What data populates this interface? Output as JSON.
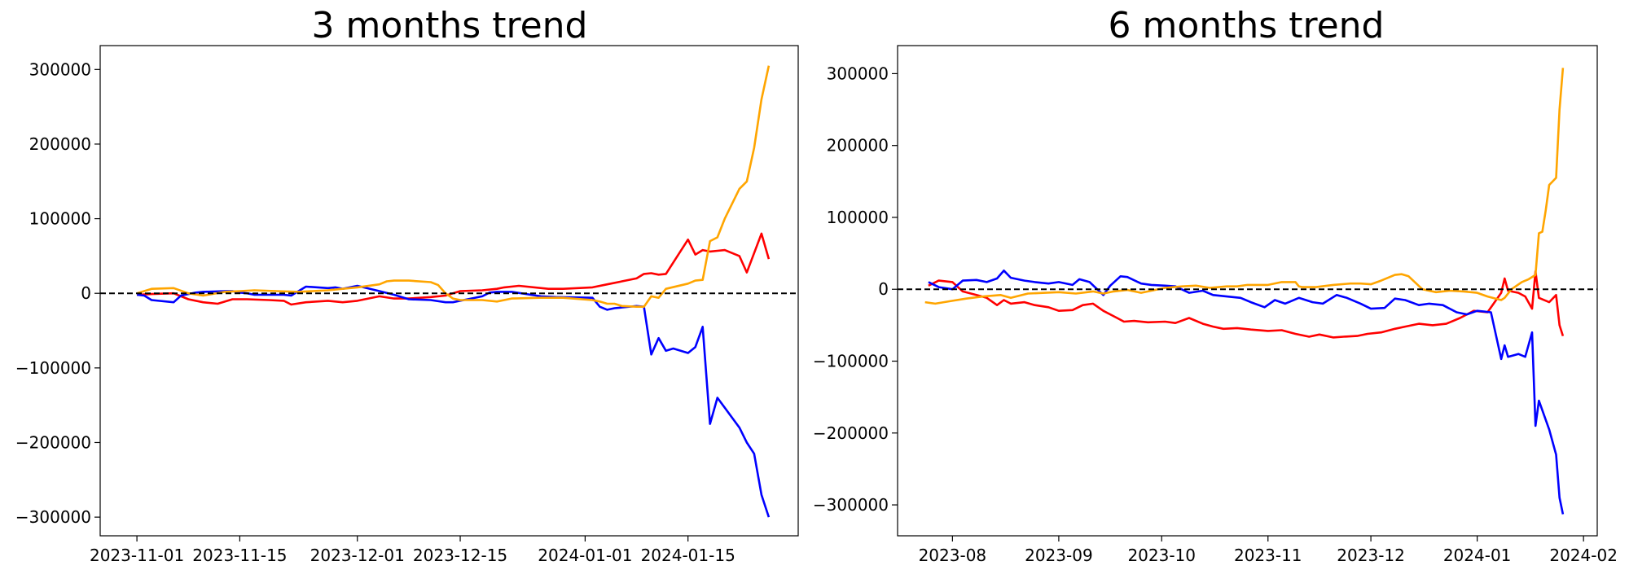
{
  "chart_data": [
    {
      "type": "line",
      "title": "3 months trend",
      "xlabel": "",
      "ylabel": "",
      "x_type": "date",
      "xlim": [
        "2023-10-27",
        "2024-01-30"
      ],
      "ylim": [
        -325000,
        332000
      ],
      "xticks": [
        "2023-11-01",
        "2023-11-15",
        "2023-12-01",
        "2023-12-15",
        "2024-01-01",
        "2024-01-15"
      ],
      "yticks": [
        -300000,
        -200000,
        -100000,
        0,
        100000,
        200000,
        300000
      ],
      "ytick_labels": [
        "−300000",
        "−200000",
        "−100000",
        "0",
        "100000",
        "200000",
        "300000"
      ],
      "grid": false,
      "reference_line": {
        "y": 0,
        "style": "dashed",
        "color": "#000000"
      },
      "series": [
        {
          "color": "#ff0000",
          "x": [
            "2023-11-01",
            "2023-11-03",
            "2023-11-06",
            "2023-11-08",
            "2023-11-10",
            "2023-11-12",
            "2023-11-14",
            "2023-11-16",
            "2023-11-19",
            "2023-11-21",
            "2023-11-22",
            "2023-11-24",
            "2023-11-27",
            "2023-11-29",
            "2023-12-01",
            "2023-12-04",
            "2023-12-06",
            "2023-12-08",
            "2023-12-11",
            "2023-12-13",
            "2023-12-15",
            "2023-12-18",
            "2023-12-20",
            "2023-12-21",
            "2023-12-23",
            "2023-12-27",
            "2023-12-29",
            "2024-01-02",
            "2024-01-04",
            "2024-01-08",
            "2024-01-09",
            "2024-01-10",
            "2024-01-11",
            "2024-01-12",
            "2024-01-15",
            "2024-01-16",
            "2024-01-17",
            "2024-01-18",
            "2024-01-19",
            "2024-01-20",
            "2024-01-22",
            "2024-01-23",
            "2024-01-25",
            "2024-01-26"
          ],
          "values": [
            -2000,
            -1000,
            0,
            -8000,
            -12000,
            -14000,
            -8000,
            -8000,
            -9000,
            -10000,
            -15000,
            -12000,
            -10000,
            -12000,
            -10000,
            -4000,
            -7000,
            -7000,
            -5000,
            -3000,
            3000,
            4000,
            6000,
            8000,
            10000,
            6000,
            6000,
            8000,
            12000,
            20000,
            26000,
            27000,
            25000,
            26000,
            72000,
            52000,
            58000,
            56000,
            57000,
            58000,
            50000,
            28000,
            80000,
            46000
          ]
        },
        {
          "color": "#0000ff",
          "x": [
            "2023-11-01",
            "2023-11-02",
            "2023-11-03",
            "2023-11-06",
            "2023-11-07",
            "2023-11-08",
            "2023-11-09",
            "2023-11-10",
            "2023-11-13",
            "2023-11-14",
            "2023-11-15",
            "2023-11-16",
            "2023-11-17",
            "2023-11-20",
            "2023-11-21",
            "2023-11-22",
            "2023-11-24",
            "2023-11-27",
            "2023-11-28",
            "2023-11-29",
            "2023-12-01",
            "2023-12-04",
            "2023-12-06",
            "2023-12-08",
            "2023-12-11",
            "2023-12-13",
            "2023-12-14",
            "2023-12-15",
            "2023-12-18",
            "2023-12-19",
            "2023-12-20",
            "2023-12-22",
            "2023-12-26",
            "2023-12-28",
            "2024-01-02",
            "2024-01-03",
            "2024-01-04",
            "2024-01-05",
            "2024-01-08",
            "2024-01-09",
            "2024-01-10",
            "2024-01-11",
            "2024-01-12",
            "2024-01-13",
            "2024-01-15",
            "2024-01-16",
            "2024-01-17",
            "2024-01-18",
            "2024-01-19",
            "2024-01-22",
            "2024-01-23",
            "2024-01-24",
            "2024-01-25",
            "2024-01-26"
          ],
          "values": [
            -2000,
            -3000,
            -9000,
            -12000,
            -3000,
            -1000,
            1000,
            2000,
            3000,
            3000,
            1000,
            0,
            -2000,
            -2000,
            -2000,
            -3000,
            9000,
            7000,
            8000,
            6000,
            10000,
            3000,
            -2000,
            -8000,
            -9000,
            -12000,
            -12000,
            -10000,
            -4000,
            1000,
            2000,
            2000,
            -4000,
            -5000,
            -6000,
            -18000,
            -22000,
            -20000,
            -17000,
            -18000,
            -82000,
            -60000,
            -77000,
            -74000,
            -80000,
            -72000,
            -45000,
            -175000,
            -140000,
            -180000,
            -200000,
            -215000,
            -270000,
            -300000
          ]
        },
        {
          "color": "#ffa500",
          "x": [
            "2023-11-01",
            "2023-11-03",
            "2023-11-06",
            "2023-11-08",
            "2023-11-10",
            "2023-11-13",
            "2023-11-15",
            "2023-11-17",
            "2023-11-20",
            "2023-11-23",
            "2023-11-27",
            "2023-11-29",
            "2023-12-01",
            "2023-12-04",
            "2023-12-05",
            "2023-12-06",
            "2023-12-08",
            "2023-12-11",
            "2023-12-12",
            "2023-12-13",
            "2023-12-14",
            "2023-12-15",
            "2023-12-18",
            "2023-12-20",
            "2023-12-22",
            "2023-12-26",
            "2023-12-29",
            "2024-01-02",
            "2024-01-03",
            "2024-01-04",
            "2024-01-05",
            "2024-01-06",
            "2024-01-08",
            "2024-01-09",
            "2024-01-10",
            "2024-01-11",
            "2024-01-12",
            "2024-01-15",
            "2024-01-16",
            "2024-01-17",
            "2024-01-18",
            "2024-01-19",
            "2024-01-20",
            "2024-01-22",
            "2024-01-23",
            "2024-01-24",
            "2024-01-25",
            "2024-01-26"
          ],
          "values": [
            0,
            6000,
            7000,
            0,
            -3000,
            2000,
            3000,
            4000,
            3000,
            2000,
            4000,
            6000,
            8000,
            12000,
            16000,
            17000,
            17000,
            15000,
            11000,
            0,
            -7000,
            -9000,
            -9000,
            -11000,
            -7000,
            -6000,
            -6000,
            -9000,
            -11000,
            -14000,
            -14000,
            -17000,
            -18000,
            -18000,
            -4000,
            -6000,
            6000,
            13000,
            17000,
            18000,
            70000,
            75000,
            100000,
            140000,
            150000,
            195000,
            260000,
            305000
          ]
        }
      ]
    },
    {
      "type": "line",
      "title": "6 months trend",
      "xlabel": "",
      "ylabel": "",
      "x_type": "date",
      "xlim": [
        "2023-07-16",
        "2024-02-05"
      ],
      "ylim": [
        -343000,
        339000
      ],
      "xticks": [
        "2023-08-01",
        "2023-09-01",
        "2023-10-01",
        "2023-11-01",
        "2023-12-01",
        "2024-01-01",
        "2024-02-01"
      ],
      "xtick_labels": [
        "2023-08",
        "2023-09",
        "2023-10",
        "2023-11",
        "2023-12",
        "2024-01",
        "2024-02"
      ],
      "yticks": [
        -300000,
        -200000,
        -100000,
        0,
        100000,
        200000,
        300000
      ],
      "ytick_labels": [
        "−300000",
        "−200000",
        "−100000",
        "0",
        "100000",
        "200000",
        "300000"
      ],
      "grid": false,
      "reference_line": {
        "y": 0,
        "style": "dashed",
        "color": "#000000"
      },
      "series": [
        {
          "color": "#ff0000",
          "x": [
            "2023-07-25",
            "2023-07-28",
            "2023-08-01",
            "2023-08-04",
            "2023-08-08",
            "2023-08-11",
            "2023-08-14",
            "2023-08-16",
            "2023-08-18",
            "2023-08-22",
            "2023-08-25",
            "2023-08-29",
            "2023-09-01",
            "2023-09-05",
            "2023-09-08",
            "2023-09-11",
            "2023-09-14",
            "2023-09-18",
            "2023-09-20",
            "2023-09-23",
            "2023-09-27",
            "2023-10-02",
            "2023-10-05",
            "2023-10-09",
            "2023-10-13",
            "2023-10-16",
            "2023-10-19",
            "2023-10-23",
            "2023-10-27",
            "2023-11-01",
            "2023-11-05",
            "2023-11-09",
            "2023-11-13",
            "2023-11-16",
            "2023-11-20",
            "2023-11-23",
            "2023-11-27",
            "2023-11-30",
            "2023-12-04",
            "2023-12-08",
            "2023-12-11",
            "2023-12-15",
            "2023-12-19",
            "2023-12-23",
            "2023-12-27",
            "2023-12-31",
            "2024-01-04",
            "2024-01-08",
            "2024-01-09",
            "2024-01-10",
            "2024-01-13",
            "2024-01-15",
            "2024-01-17",
            "2024-01-18",
            "2024-01-19",
            "2024-01-22",
            "2024-01-24",
            "2024-01-25",
            "2024-01-26"
          ],
          "values": [
            5000,
            12000,
            10000,
            -3000,
            -8000,
            -12000,
            -22000,
            -15000,
            -20000,
            -18000,
            -22000,
            -25000,
            -30000,
            -29000,
            -22000,
            -20000,
            -30000,
            -40000,
            -45000,
            -44000,
            -46000,
            -45000,
            -47000,
            -40000,
            -48000,
            -52000,
            -55000,
            -54000,
            -56000,
            -58000,
            -57000,
            -62000,
            -66000,
            -63000,
            -67000,
            -66000,
            -65000,
            -62000,
            -60000,
            -55000,
            -52000,
            -48000,
            -50000,
            -48000,
            -40000,
            -30000,
            -32000,
            -5000,
            15000,
            -2000,
            -5000,
            -10000,
            -27000,
            25000,
            -12000,
            -18000,
            -8000,
            -50000,
            -65000
          ]
        },
        {
          "color": "#0000ff",
          "x": [
            "2023-07-25",
            "2023-07-28",
            "2023-08-01",
            "2023-08-04",
            "2023-08-08",
            "2023-08-11",
            "2023-08-14",
            "2023-08-16",
            "2023-08-18",
            "2023-08-22",
            "2023-08-25",
            "2023-08-29",
            "2023-09-01",
            "2023-09-05",
            "2023-09-07",
            "2023-09-10",
            "2023-09-14",
            "2023-09-16",
            "2023-09-19",
            "2023-09-21",
            "2023-09-25",
            "2023-09-28",
            "2023-10-02",
            "2023-10-05",
            "2023-10-09",
            "2023-10-13",
            "2023-10-16",
            "2023-10-20",
            "2023-10-24",
            "2023-10-27",
            "2023-10-31",
            "2023-11-03",
            "2023-11-06",
            "2023-11-10",
            "2023-11-14",
            "2023-11-17",
            "2023-11-21",
            "2023-11-24",
            "2023-11-28",
            "2023-12-01",
            "2023-12-05",
            "2023-12-08",
            "2023-12-11",
            "2023-12-15",
            "2023-12-18",
            "2023-12-22",
            "2023-12-26",
            "2023-12-29",
            "2024-01-01",
            "2024-01-05",
            "2024-01-08",
            "2024-01-09",
            "2024-01-10",
            "2024-01-13",
            "2024-01-15",
            "2024-01-17",
            "2024-01-18",
            "2024-01-19",
            "2024-01-22",
            "2024-01-24",
            "2024-01-25",
            "2024-01-26"
          ],
          "values": [
            10000,
            3000,
            0,
            12000,
            13000,
            10000,
            15000,
            26000,
            16000,
            12000,
            10000,
            8000,
            10000,
            6000,
            14000,
            10000,
            -8000,
            5000,
            18000,
            17000,
            8000,
            6000,
            5000,
            4000,
            -5000,
            -2000,
            -8000,
            -10000,
            -12000,
            -18000,
            -25000,
            -15000,
            -20000,
            -12000,
            -18000,
            -20000,
            -8000,
            -12000,
            -20000,
            -27000,
            -26000,
            -13000,
            -15000,
            -22000,
            -20000,
            -22000,
            -32000,
            -35000,
            -30000,
            -32000,
            -97000,
            -78000,
            -94000,
            -90000,
            -94000,
            -60000,
            -190000,
            -155000,
            -195000,
            -230000,
            -290000,
            -313000
          ]
        },
        {
          "color": "#ffa500",
          "x": [
            "2023-07-24",
            "2023-07-27",
            "2023-08-01",
            "2023-08-05",
            "2023-08-10",
            "2023-08-15",
            "2023-08-18",
            "2023-08-23",
            "2023-08-28",
            "2023-09-01",
            "2023-09-06",
            "2023-09-11",
            "2023-09-14",
            "2023-09-17",
            "2023-09-21",
            "2023-09-25",
            "2023-09-28",
            "2023-10-02",
            "2023-10-07",
            "2023-10-11",
            "2023-10-15",
            "2023-10-20",
            "2023-10-23",
            "2023-10-26",
            "2023-11-01",
            "2023-11-05",
            "2023-11-09",
            "2023-11-10",
            "2023-11-11",
            "2023-11-15",
            "2023-11-20",
            "2023-11-25",
            "2023-11-28",
            "2023-12-01",
            "2023-12-04",
            "2023-12-08",
            "2023-12-10",
            "2023-12-12",
            "2023-12-16",
            "2023-12-20",
            "2023-12-24",
            "2023-12-28",
            "2024-01-01",
            "2024-01-04",
            "2024-01-08",
            "2024-01-09",
            "2024-01-11",
            "2024-01-14",
            "2024-01-16",
            "2024-01-18",
            "2024-01-19",
            "2024-01-20",
            "2024-01-21",
            "2024-01-22",
            "2024-01-24",
            "2024-01-25",
            "2024-01-26"
          ],
          "values": [
            -18000,
            -20000,
            -16000,
            -13000,
            -10000,
            -8000,
            -12000,
            -6000,
            -5000,
            -4000,
            -6000,
            -3000,
            -6000,
            -3000,
            -1000,
            -5000,
            -2000,
            2000,
            4000,
            5000,
            2000,
            4000,
            4000,
            6000,
            6000,
            10000,
            10000,
            4000,
            3000,
            3000,
            6000,
            8000,
            8000,
            7000,
            12000,
            20000,
            21000,
            18000,
            0,
            -4000,
            -2000,
            -3000,
            -5000,
            -10000,
            -15000,
            -12000,
            0,
            10000,
            14000,
            20000,
            78000,
            80000,
            110000,
            145000,
            155000,
            250000,
            308000
          ]
        }
      ]
    }
  ]
}
